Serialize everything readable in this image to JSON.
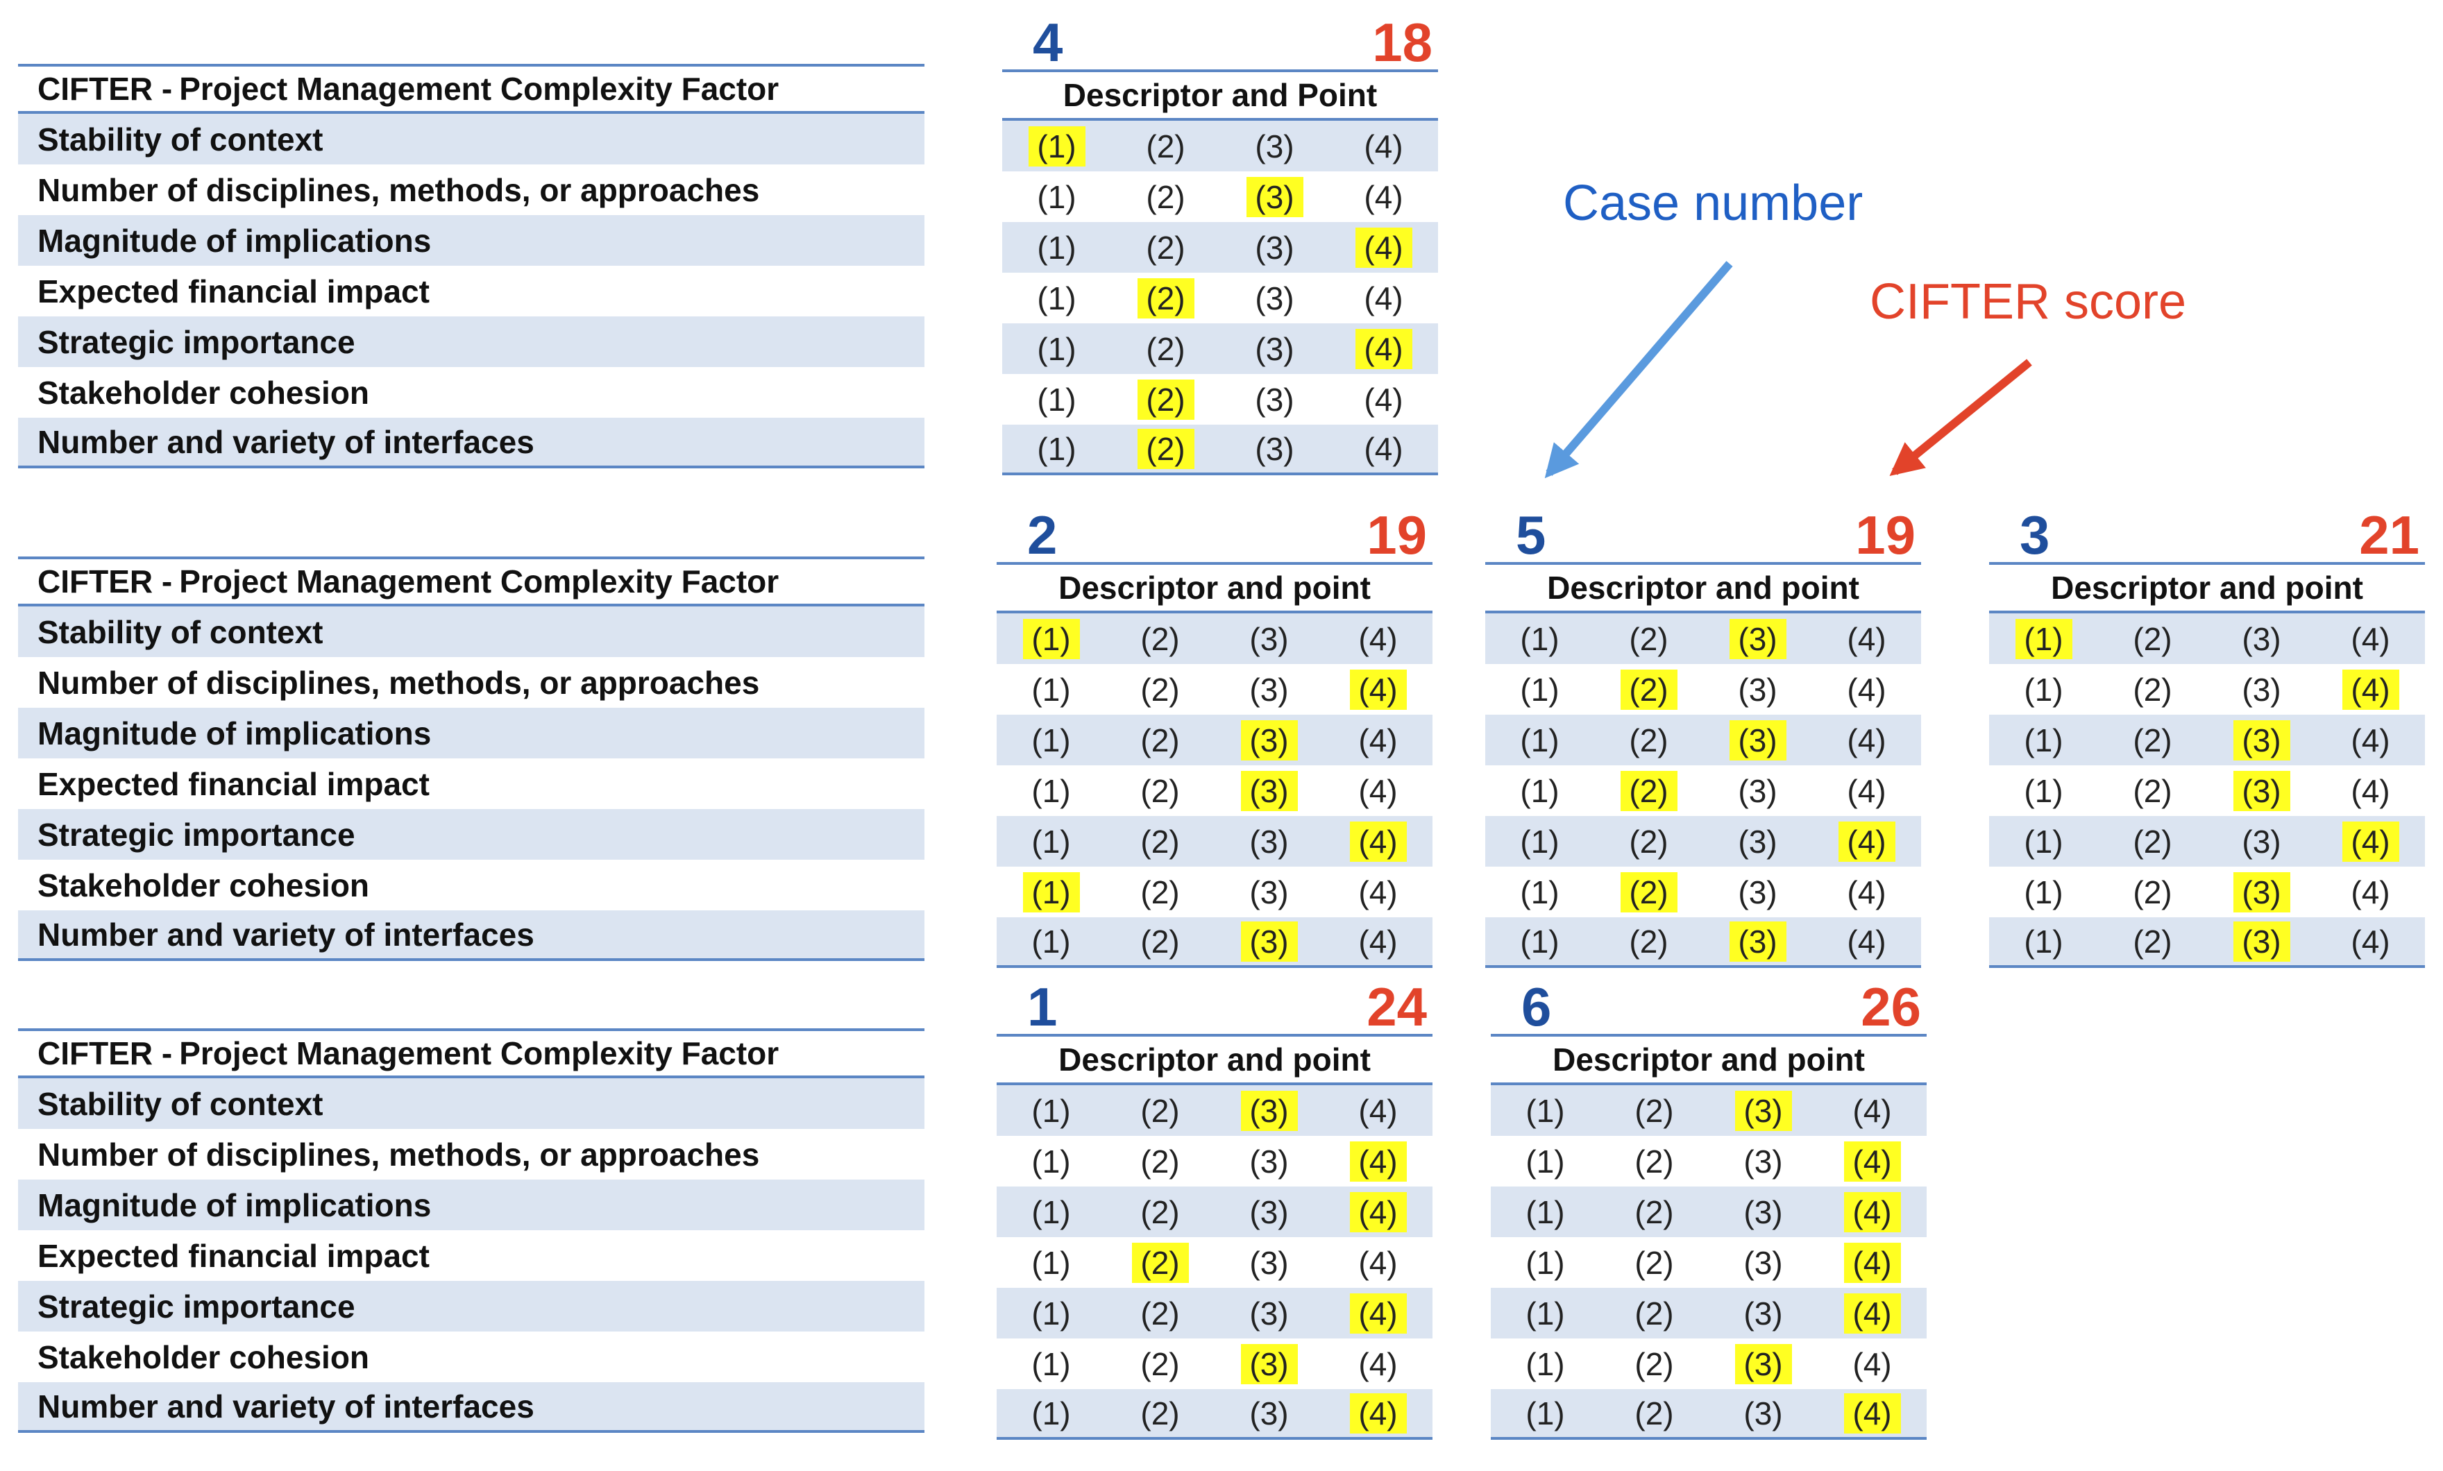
{
  "factor_table": {
    "header_prefix": "CIFTER -",
    "header_title": "Project Management Complexity Factor",
    "rows": [
      "Stability of context",
      "Number of disciplines, methods, or approaches",
      "Magnitude of implications",
      "Expected financial impact",
      "Strategic importance",
      "Stakeholder cohesion",
      "Number and variety of interfaces"
    ]
  },
  "point_labels": [
    "(1)",
    "(2)",
    "(3)",
    "(4)"
  ],
  "cases": [
    {
      "case_number": "4",
      "cifter_score": "18",
      "descriptor_label": "Descriptor and Point",
      "selected": [
        1,
        3,
        4,
        2,
        4,
        2,
        2
      ]
    },
    {
      "case_number": "2",
      "cifter_score": "19",
      "descriptor_label": "Descriptor and point",
      "selected": [
        1,
        4,
        3,
        3,
        4,
        1,
        3
      ]
    },
    {
      "case_number": "5",
      "cifter_score": "19",
      "descriptor_label": "Descriptor and point",
      "selected": [
        3,
        2,
        3,
        2,
        4,
        2,
        3
      ]
    },
    {
      "case_number": "3",
      "cifter_score": "21",
      "descriptor_label": "Descriptor and point",
      "selected": [
        1,
        4,
        3,
        3,
        4,
        3,
        3
      ]
    },
    {
      "case_number": "1",
      "cifter_score": "24",
      "descriptor_label": "Descriptor and point",
      "selected": [
        3,
        4,
        4,
        2,
        4,
        3,
        4
      ]
    },
    {
      "case_number": "6",
      "cifter_score": "26",
      "descriptor_label": "Descriptor and point",
      "selected": [
        3,
        4,
        4,
        4,
        4,
        3,
        4
      ]
    }
  ],
  "callouts": {
    "case_number_label": "Case number",
    "cifter_score_label": "CIFTER score"
  },
  "colors": {
    "case_number": "#1f4e9c",
    "cifter_score": "#e2432a",
    "highlight": "#ffff22",
    "row_shade": "#dbe4f1",
    "rule": "#5b86c4"
  }
}
